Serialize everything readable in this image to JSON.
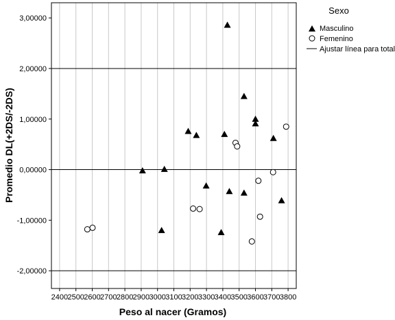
{
  "chart_data": {
    "type": "scatter",
    "title": "",
    "xlabel": "Peso al nacer (Gramos)",
    "ylabel": "Promedio DL(+2DS/-2DS)",
    "xlim": [
      2350,
      3850
    ],
    "ylim": [
      -2.35,
      3.3
    ],
    "x_ticks": [
      2400,
      2500,
      2600,
      2700,
      2800,
      2900,
      3000,
      3100,
      3200,
      3300,
      3400,
      3500,
      3600,
      3700,
      3800
    ],
    "x_tick_labels": [
      "2400",
      "2500",
      "2600",
      "2700",
      "2800",
      "2900",
      "3000",
      "3100",
      "3200",
      "3300",
      "3400",
      "3500",
      "3600",
      "3700",
      "3800"
    ],
    "y_ticks": [
      -2,
      -1,
      0,
      1,
      2,
      3
    ],
    "y_tick_labels": [
      "-2,00000",
      "-1,00000",
      "0,00000",
      "1,00000",
      "2,00000",
      "3,00000"
    ],
    "x_grid": true,
    "legend": {
      "title": "Sexo",
      "placement": "right",
      "entries": [
        "Masculino",
        "Femenino",
        "Ajustar línea para total"
      ]
    },
    "reference_lines_y": [
      2,
      0,
      -2
    ],
    "series": [
      {
        "name": "Masculino",
        "marker": "filled-triangle",
        "points": [
          {
            "x": 2908,
            "y": -0.02
          },
          {
            "x": 3025,
            "y": -1.2
          },
          {
            "x": 3042,
            "y": 0.01
          },
          {
            "x": 3188,
            "y": 0.76
          },
          {
            "x": 3238,
            "y": 0.68
          },
          {
            "x": 3298,
            "y": -0.32
          },
          {
            "x": 3390,
            "y": -1.24
          },
          {
            "x": 3410,
            "y": 0.7
          },
          {
            "x": 3428,
            "y": 2.86
          },
          {
            "x": 3440,
            "y": -0.43
          },
          {
            "x": 3530,
            "y": 1.45
          },
          {
            "x": 3530,
            "y": -0.46
          },
          {
            "x": 3600,
            "y": 1.0
          },
          {
            "x": 3600,
            "y": 0.91
          },
          {
            "x": 3710,
            "y": 0.62
          },
          {
            "x": 3760,
            "y": -0.61
          }
        ]
      },
      {
        "name": "Femenino",
        "marker": "open-circle",
        "points": [
          {
            "x": 2570,
            "y": -1.18
          },
          {
            "x": 2602,
            "y": -1.15
          },
          {
            "x": 3218,
            "y": -0.77
          },
          {
            "x": 3258,
            "y": -0.78
          },
          {
            "x": 3478,
            "y": 0.53
          },
          {
            "x": 3488,
            "y": 0.46
          },
          {
            "x": 3578,
            "y": -1.42
          },
          {
            "x": 3618,
            "y": -0.22
          },
          {
            "x": 3628,
            "y": -0.93
          },
          {
            "x": 3708,
            "y": -0.05
          },
          {
            "x": 3788,
            "y": 0.85
          }
        ]
      }
    ]
  },
  "colors": {
    "marker": "#000000",
    "grid": "#c8c8c8",
    "frame": "#000000"
  }
}
